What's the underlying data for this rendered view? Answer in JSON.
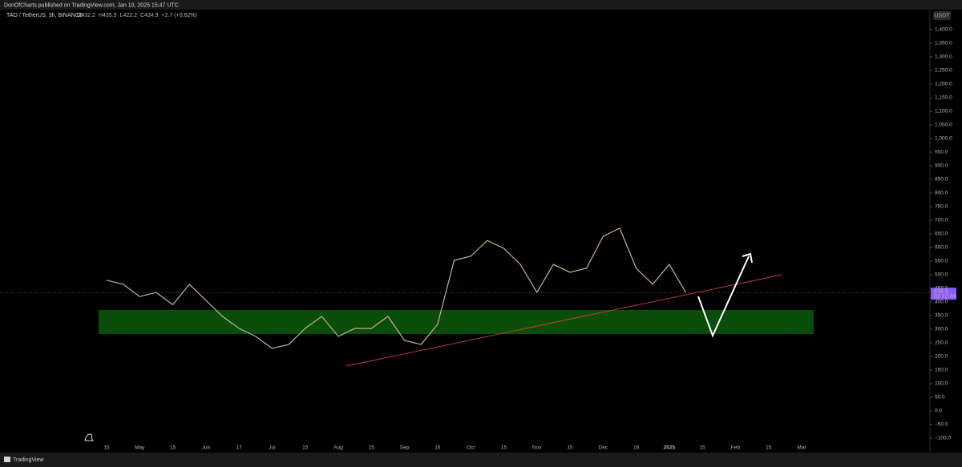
{
  "chart_data": {
    "type": "line",
    "publisher": "DonOfCharts published on TradingView.com, Jan 10, 2025 15:47 UTC",
    "symbol": "TAO / TetherUS, 3h, BINANCE",
    "ohlc_labels": [
      "O432.2",
      "H435.5",
      "L422.2",
      "C434.9",
      "+2.7 (+0.62%)"
    ],
    "currency": "USDT",
    "last_price": 434.9,
    "countdown": "02:12:46",
    "footer": "TradingView",
    "categories": [
      "15",
      null,
      "May",
      null,
      "15",
      null,
      "Jun",
      null,
      "17",
      null,
      "Jul",
      null,
      "15",
      null,
      "Aug",
      null,
      "15",
      null,
      "Sep",
      null,
      "16",
      null,
      "Oct",
      null,
      "15",
      null,
      "Nov",
      null,
      "15",
      null,
      "Dec",
      null,
      "16",
      null,
      "2025",
      null,
      "15",
      null,
      "Feb",
      null,
      "15",
      null,
      "Mar"
    ],
    "series": [
      {
        "name": "TAO / TetherUS",
        "color": "#c8b48c",
        "values": [
          480,
          465,
          420,
          435,
          390,
          465,
          406,
          347,
          303,
          274,
          230,
          244,
          303,
          347,
          274,
          303,
          303,
          347,
          259,
          244,
          318,
          553,
          568,
          626,
          597,
          538,
          435,
          538,
          509,
          524,
          641,
          671,
          524,
          465,
          538,
          435,
          null,
          null,
          null,
          null,
          null,
          null,
          null
        ]
      }
    ],
    "ylim": [
      -100,
      1400
    ],
    "yticks": [
      {
        "value": -100,
        "label": "−100.0"
      },
      {
        "value": -50,
        "label": "−50.0"
      },
      {
        "value": 0,
        "label": "0.0"
      },
      {
        "value": 50,
        "label": "50.0"
      },
      {
        "value": 100,
        "label": "100.0"
      },
      {
        "value": 150,
        "label": "150.0"
      },
      {
        "value": 200,
        "label": "200.0"
      },
      {
        "value": 250,
        "label": "250.0"
      },
      {
        "value": 300,
        "label": "300.0"
      },
      {
        "value": 350,
        "label": "350.0"
      },
      {
        "value": 400,
        "label": "400.0"
      },
      {
        "value": 450,
        "label": "450.0"
      },
      {
        "value": 500,
        "label": "500.0"
      },
      {
        "value": 550,
        "label": "550.0"
      },
      {
        "value": 600,
        "label": "600.0"
      },
      {
        "value": 650,
        "label": "650.0"
      },
      {
        "value": 700,
        "label": "700.0"
      },
      {
        "value": 750,
        "label": "750.0"
      },
      {
        "value": 800,
        "label": "800.0"
      },
      {
        "value": 850,
        "label": "850.0"
      },
      {
        "value": 900,
        "label": "900.0"
      },
      {
        "value": 950,
        "label": "950.0"
      },
      {
        "value": 1000,
        "label": "1,000.0"
      },
      {
        "value": 1050,
        "label": "1,050.0"
      },
      {
        "value": 1100,
        "label": "1,100.0"
      },
      {
        "value": 1150,
        "label": "1,150.0"
      },
      {
        "value": 1200,
        "label": "1,200.0"
      },
      {
        "value": 1250,
        "label": "1,250.0"
      },
      {
        "value": 1300,
        "label": "1,300.0"
      },
      {
        "value": 1350,
        "label": "1,350.0"
      },
      {
        "value": 1400,
        "label": "1,400.0"
      }
    ],
    "grid": false
  }
}
